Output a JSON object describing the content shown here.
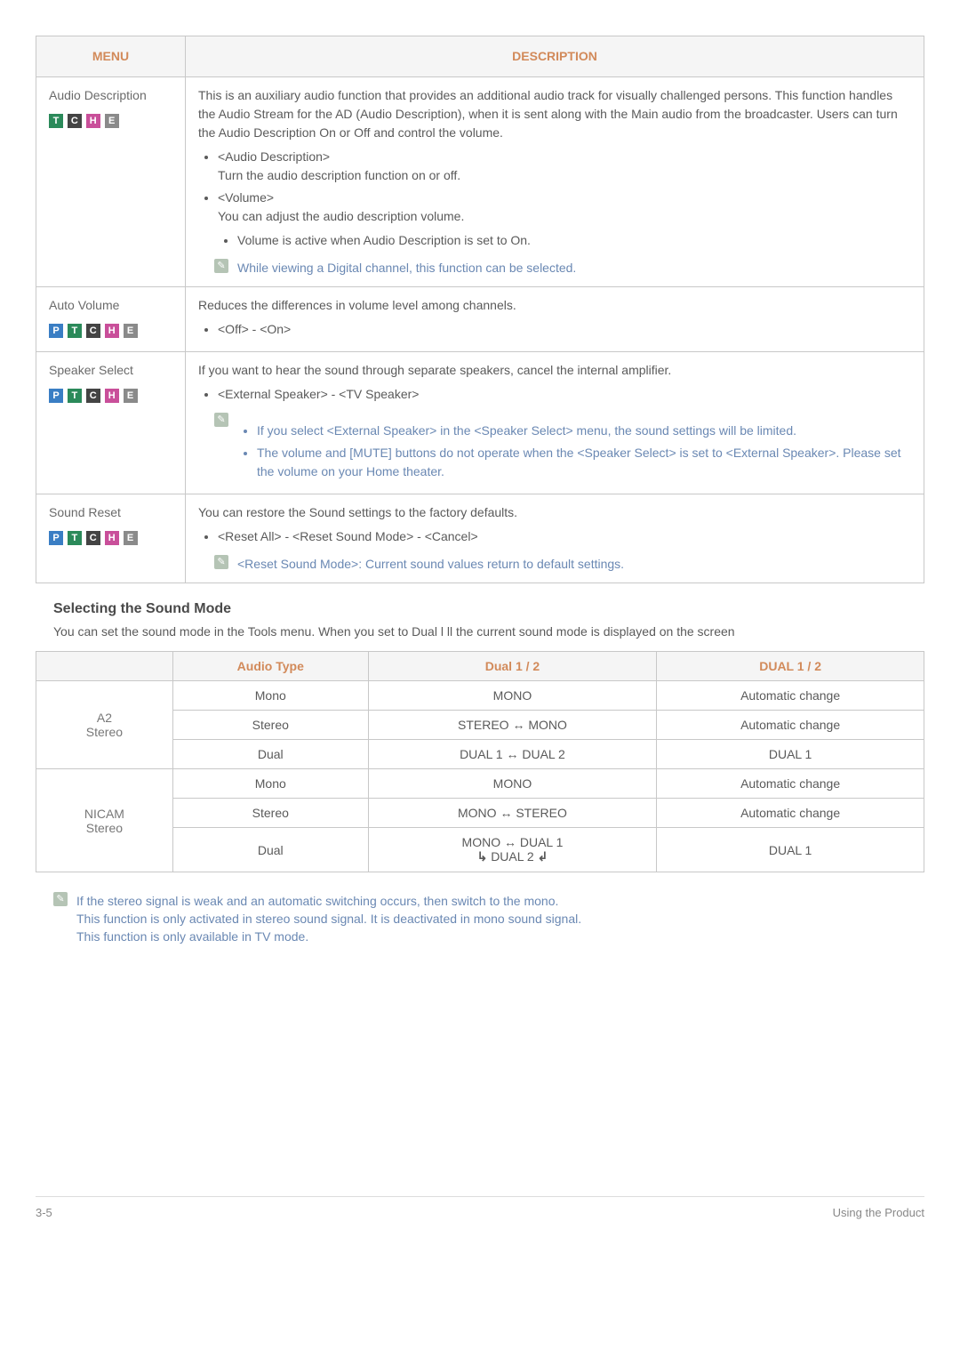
{
  "table1": {
    "headers": {
      "menu": "MENU",
      "description": "DESCRIPTION"
    },
    "rows": {
      "audioDescription": {
        "title": "Audio Description",
        "badges": [
          "T",
          "C",
          "H",
          "E"
        ],
        "intro": "This is an auxiliary audio function that provides an additional audio track for visually challenged persons. This function handles the Audio Stream for the AD (Audio Description), when it is sent along with the Main audio from the broadcaster. Users can turn the Audio Description On or Off and control the volume.",
        "b1_label": "<Audio Description>",
        "b1_text": "Turn the audio description function on or off.",
        "b2_label": "<Volume>",
        "b2_text": "You can adjust the audio description volume.",
        "b2_sub": "Volume is active when Audio Description is set to On.",
        "note": "While viewing a Digital channel, this function can be selected."
      },
      "autoVolume": {
        "title": "Auto Volume",
        "badges": [
          "P",
          "T",
          "C",
          "H",
          "E"
        ],
        "intro": "Reduces the differences in volume level among channels.",
        "opts": "<Off> - <On>"
      },
      "speakerSelect": {
        "title": "Speaker Select",
        "badges": [
          "P",
          "T",
          "C",
          "H",
          "E"
        ],
        "intro": "If you want to hear the sound through separate speakers, cancel the internal amplifier.",
        "opts": "<External Speaker> - <TV Speaker>",
        "note1": "If you select <External Speaker> in the <Speaker Select> menu, the sound settings will be limited.",
        "note2": "The volume and [MUTE] buttons do not operate when the <Speaker Select> is set to <External Speaker>. Please set the volume on your Home theater."
      },
      "soundReset": {
        "title": "Sound Reset",
        "badges": [
          "P",
          "T",
          "C",
          "H",
          "E"
        ],
        "intro": "You can restore the Sound settings to the factory defaults.",
        "opts": "<Reset All> - <Reset Sound Mode> - <Cancel>",
        "note": "<Reset Sound Mode>: Current sound values return to default settings."
      }
    }
  },
  "section": {
    "title": "Selecting the Sound Mode",
    "sub": "You can set the sound mode in the Tools menu. When you set to Dual l ll the current sound mode is displayed on the screen"
  },
  "table2": {
    "headers": {
      "audioType": "Audio Type",
      "dual12a": "Dual 1 / 2",
      "dual12b": "DUAL 1 / 2"
    },
    "groups": {
      "a2": {
        "label": "A2\nStereo",
        "rows": [
          {
            "type": "Mono",
            "col2": "MONO",
            "col3": "Automatic change"
          },
          {
            "type": "Stereo",
            "col2": "STEREO ↔ MONO",
            "col3": "Automatic change"
          },
          {
            "type": "Dual",
            "col2": "DUAL 1 ↔ DUAL 2",
            "col3": "DUAL 1"
          }
        ]
      },
      "nicam": {
        "label": "NICAM\nStereo",
        "rows": [
          {
            "type": "Mono",
            "col2": "MONO",
            "col3": "Automatic change"
          },
          {
            "type": "Stereo",
            "col2": "MONO ↔ STEREO",
            "col3": "Automatic change"
          },
          {
            "type": "Dual",
            "col2a": "MONO ↔ DUAL 1",
            "col2b": "DUAL 2",
            "col3": "DUAL 1"
          }
        ]
      }
    }
  },
  "footnotes": {
    "l1": "If the stereo signal is weak and an automatic switching occurs, then switch to the mono.",
    "l2": "This function is only activated in stereo sound signal. It is deactivated in mono sound signal.",
    "l3": "This function is only available in TV mode."
  },
  "footer": {
    "left": "3-5",
    "right": "Using the Product"
  }
}
